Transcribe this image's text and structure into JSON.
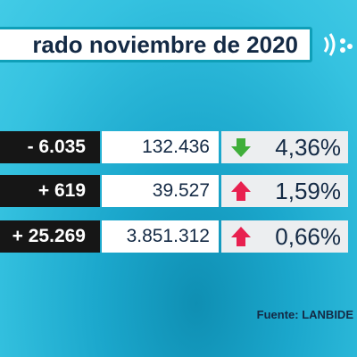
{
  "header": {
    "title": "rado noviembre de 2020"
  },
  "table": {
    "rows": [
      [
        "- 6.035",
        "132.436",
        "4,36%"
      ],
      [
        "+ 619",
        "39.527",
        "1,59%"
      ],
      [
        "+ 25.269",
        "3.851.312",
        "0,66%"
      ]
    ]
  },
  "footer": {
    "source": "Fuente: LANBIDE"
  }
}
